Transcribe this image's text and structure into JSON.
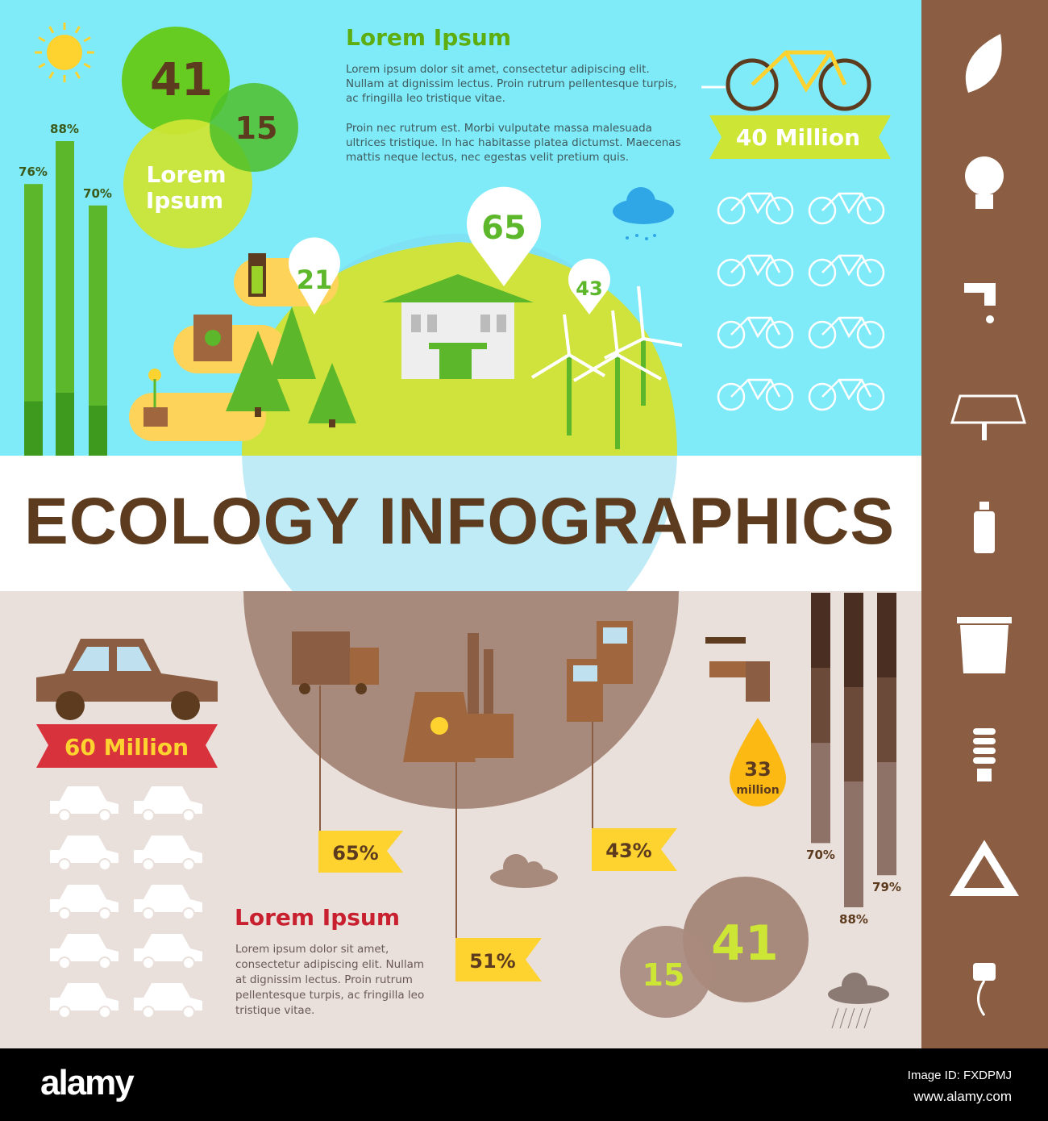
{
  "title": "ECOLOGY INFOGRAPHICS",
  "colors": {
    "sky": "#7feaf8",
    "green": "#5cb82a",
    "brown": "#8b5e43",
    "title": "#5c3b1e",
    "beige": "#e9dfdb",
    "yellow": "#fec731",
    "red": "#d8323c"
  },
  "top": {
    "heading": "Lorem Ipsum",
    "paragraph1": "Lorem ipsum dolor sit amet, consectetur adipiscing elit. Nullam at dignissim lectus. Proin rutrum pellentesque turpis, ac fringilla leo tristique vitae.",
    "paragraph2": "Proin nec rutrum est. Morbi vulputate massa malesuada ultrices tristique. In hac habitasse platea dictumst. Maecenas mattis neque lectus, nec egestas velit pretium quis.",
    "bars": [
      {
        "label": "76%",
        "value": 76
      },
      {
        "label": "88%",
        "value": 88
      },
      {
        "label": "70%",
        "value": 70
      }
    ],
    "circles": {
      "big": "41",
      "small": "15",
      "label_line1": "Lorem",
      "label_line2": "Ipsum"
    },
    "pins": [
      "21",
      "65",
      "43"
    ],
    "bike_banner": "40 Million",
    "bike_count": 8
  },
  "bottom": {
    "heading": "Lorem Ipsum",
    "paragraph": "Lorem ipsum dolor sit amet, consectetur adipiscing elit. Nullam at dignissim lectus. Proin rutrum pellentesque turpis, ac fringilla leo tristique vitae.",
    "car_banner": "60 Million",
    "car_count": 10,
    "flags": [
      "65%",
      "51%",
      "43%"
    ],
    "drop_value": "33",
    "drop_unit": "million",
    "bars": [
      {
        "label": "70%",
        "value": 70
      },
      {
        "label": "88%",
        "value": 88
      },
      {
        "label": "79%",
        "value": 79
      }
    ],
    "circles": {
      "big": "41",
      "small": "15"
    }
  },
  "sidebar_icons": [
    "leaf-icon",
    "eco-bulb-icon",
    "tap-icon",
    "solar-panel-icon",
    "bottle-icon",
    "recycle-bin-icon",
    "cfl-bulb-icon",
    "recycle-icon",
    "eco-plug-icon"
  ],
  "footer": {
    "logo": "alamy",
    "image_id": "Image ID: FXDPMJ",
    "url": "www.alamy.com"
  }
}
